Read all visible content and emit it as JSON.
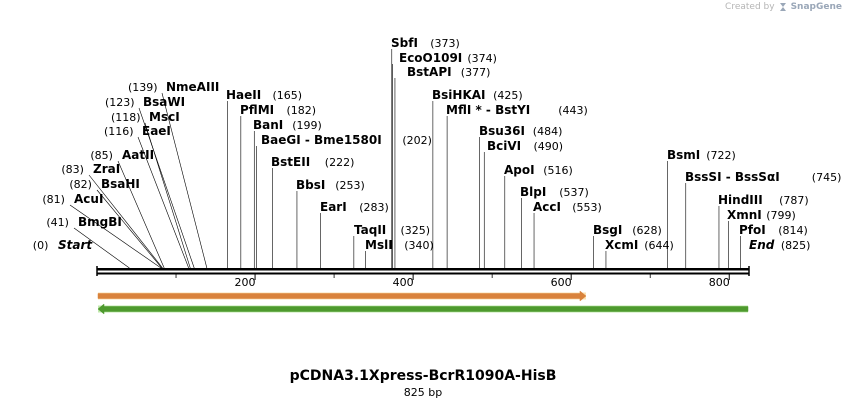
{
  "watermark": {
    "prefix": "Created by",
    "brand": "SnapGene",
    "icon": "snapgene-logo-icon"
  },
  "title": "pCDNA3.1Xpress-BcrR1090A-HisB",
  "length_label": "825 bp",
  "sequence": {
    "length": 825,
    "ticks": [
      200,
      400,
      600,
      800
    ]
  },
  "features": [
    {
      "name": "orf-forward",
      "start": 0,
      "end": 620,
      "direction": "right",
      "fill": "#f7c870",
      "stroke": "#d9823b"
    },
    {
      "name": "orf-reverse",
      "start": 0,
      "end": 825,
      "direction": "left",
      "fill": "#8ed66b",
      "stroke": "#4e9a2e"
    }
  ],
  "sites": [
    {
      "name": "Start",
      "pos": "0",
      "italic": true
    },
    {
      "name": "BmgBI",
      "pos": "41"
    },
    {
      "name": "AcuI",
      "pos": "81"
    },
    {
      "name": "BsaHI",
      "pos": "82"
    },
    {
      "name": "ZraI",
      "pos": "83"
    },
    {
      "name": "AatII",
      "pos": "85"
    },
    {
      "name": "EaeI",
      "pos": "116"
    },
    {
      "name": "MscI",
      "pos": "118"
    },
    {
      "name": "BsaWI",
      "pos": "123"
    },
    {
      "name": "NmeAIII",
      "pos": "139"
    },
    {
      "name": "HaeII",
      "pos": "165"
    },
    {
      "name": "PflMI",
      "pos": "182"
    },
    {
      "name": "BanI",
      "pos": "199"
    },
    {
      "name": "BaeGI  -  Bme1580I",
      "pos": "202"
    },
    {
      "name": "BstEII",
      "pos": "222"
    },
    {
      "name": "BbsI",
      "pos": "253"
    },
    {
      "name": "EarI",
      "pos": "283"
    },
    {
      "name": "TaqII",
      "pos": "325"
    },
    {
      "name": "MslI",
      "pos": "340"
    },
    {
      "name": "SbfI",
      "pos": "373"
    },
    {
      "name": "EcoO109I",
      "pos": "374"
    },
    {
      "name": "BstAPI",
      "pos": "377"
    },
    {
      "name": "BsiHKAI",
      "pos": "425"
    },
    {
      "name": "MflI * - BstYI",
      "pos": "443"
    },
    {
      "name": "Bsu36I",
      "pos": "484"
    },
    {
      "name": "BciVI",
      "pos": "490"
    },
    {
      "name": "ApoI",
      "pos": "516"
    },
    {
      "name": "BlpI",
      "pos": "537"
    },
    {
      "name": "AccI",
      "pos": "553"
    },
    {
      "name": "BsgI",
      "pos": "628"
    },
    {
      "name": "XcmI",
      "pos": "644"
    },
    {
      "name": "BsmI",
      "pos": "722"
    },
    {
      "name": "BssSI  -  BssSαI",
      "pos": "745"
    },
    {
      "name": "HindIII",
      "pos": "787"
    },
    {
      "name": "XmnI",
      "pos": "799"
    },
    {
      "name": "PfoI",
      "pos": "814"
    },
    {
      "name": "End",
      "pos": "825",
      "italic": true
    }
  ]
}
